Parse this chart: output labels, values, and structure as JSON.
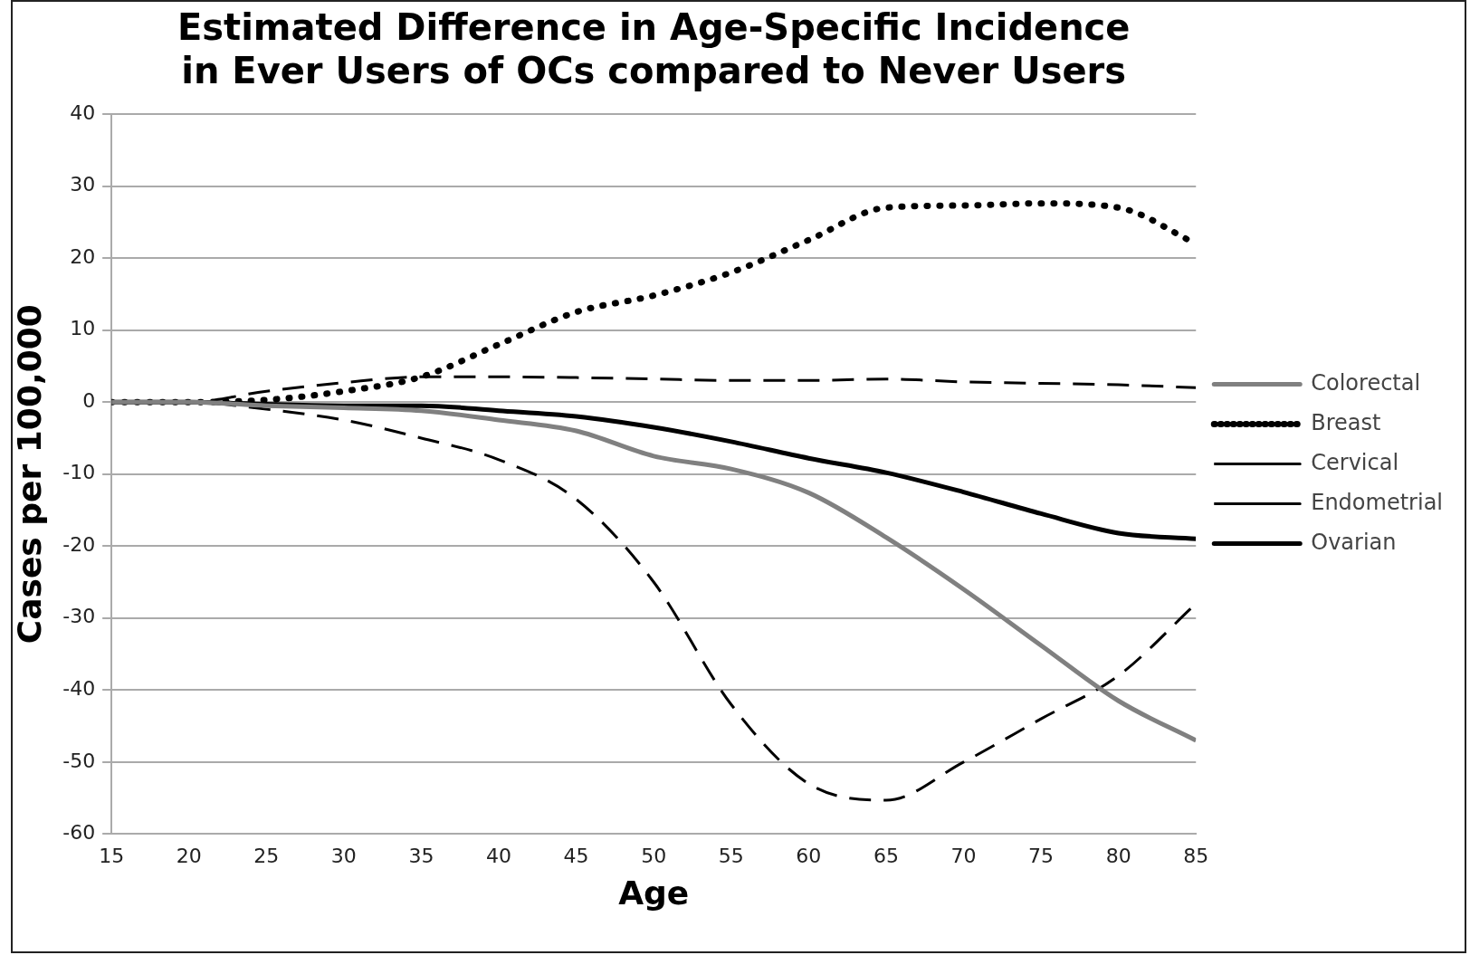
{
  "chart_data": {
    "type": "line",
    "title": "Estimated Difference in Age-Specific Incidence in Ever Users of OCs compared to Never Users",
    "xlabel": "Age",
    "ylabel": "Cases per 100,000",
    "x": [
      15,
      20,
      25,
      30,
      35,
      40,
      45,
      50,
      55,
      60,
      65,
      70,
      75,
      80,
      85
    ],
    "xlim": [
      15,
      85
    ],
    "xticks": [
      15,
      20,
      25,
      30,
      35,
      40,
      45,
      50,
      55,
      60,
      65,
      70,
      75,
      80,
      85
    ],
    "ylim": [
      -60,
      40
    ],
    "yticks": [
      -60,
      -50,
      -40,
      -30,
      -20,
      -10,
      0,
      10,
      20,
      30,
      40
    ],
    "grid": "y",
    "legend": "right",
    "marker": "none",
    "series": [
      {
        "name": "Colorectal",
        "color": "#808080",
        "line_style": "solid",
        "values": [
          0,
          0,
          -0.5,
          -0.8,
          -1.2,
          -2.5,
          -4,
          -7.5,
          -9.3,
          -12.6,
          -18.8,
          -26,
          -33.8,
          -41.5,
          -47
        ]
      },
      {
        "name": "Breast",
        "color": "#000000",
        "line_style": "dotted",
        "values": [
          0,
          0,
          0.3,
          1.5,
          3.5,
          8,
          12.5,
          14.8,
          18,
          22.5,
          27,
          27.3,
          27.6,
          27,
          22
        ]
      },
      {
        "name": "Cervical",
        "color": "#000000",
        "line_style": "dashed",
        "values": [
          0,
          0,
          1.5,
          2.7,
          3.5,
          3.5,
          3.4,
          3.2,
          3,
          3,
          3.2,
          2.8,
          2.6,
          2.4,
          2
        ]
      },
      {
        "name": "Endometrial",
        "color": "#000000",
        "line_style": "dashed",
        "values": [
          0,
          0,
          -1,
          -2.5,
          -5,
          -8,
          -13.5,
          -25,
          -42,
          -53,
          -55.3,
          -50,
          -44,
          -38,
          -28
        ]
      },
      {
        "name": "Ovarian",
        "color": "#000000",
        "line_style": "solid",
        "values": [
          0,
          0,
          -0.3,
          -0.5,
          -0.5,
          -1.2,
          -2,
          -3.5,
          -5.5,
          -7.8,
          -9.8,
          -12.5,
          -15.5,
          -18.2,
          -19
        ]
      }
    ]
  }
}
